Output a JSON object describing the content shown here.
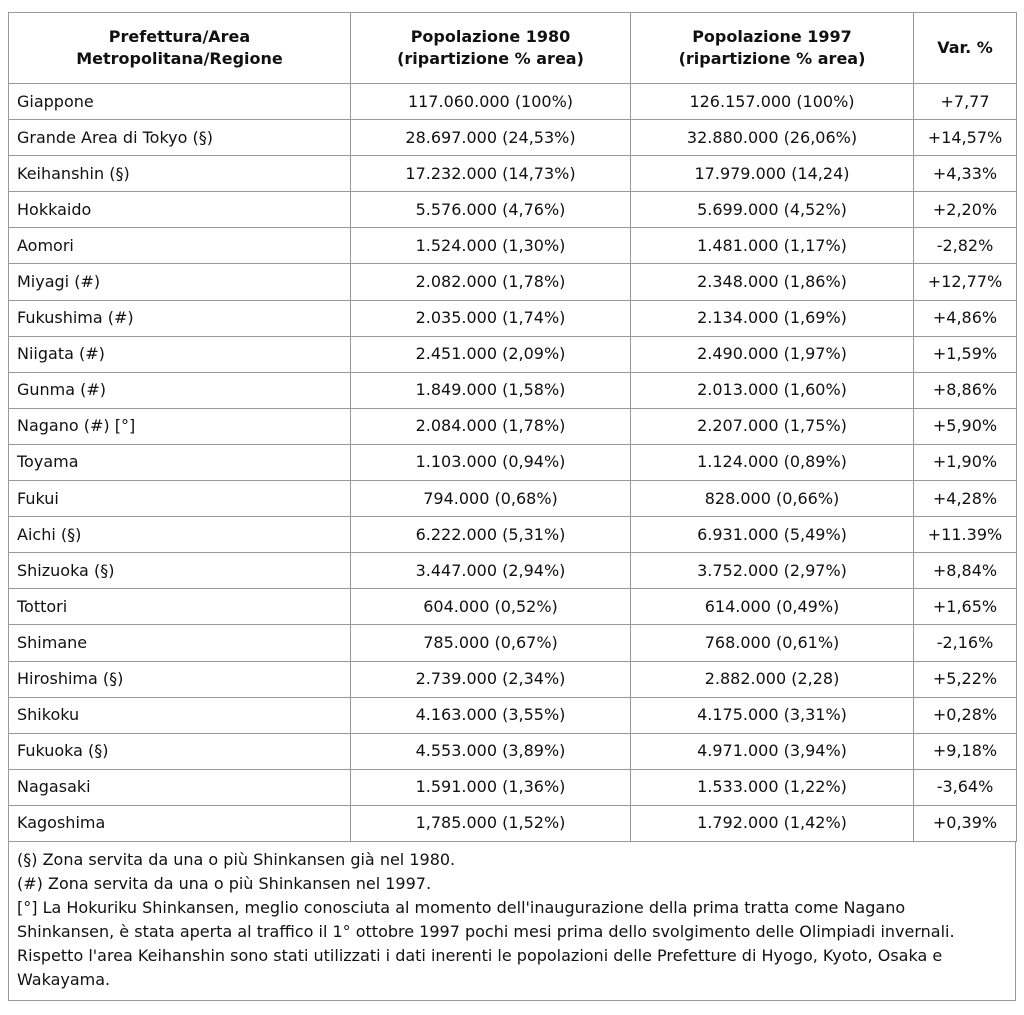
{
  "table": {
    "headers": {
      "area": "Prefettura/Area Metropolitana/Regione",
      "pop1980": "Popolazione 1980 (ripartizione % area)",
      "pop1997": "Popolazione 1997 (ripartizione % area)",
      "var": "Var. %"
    },
    "rows": [
      {
        "area": "Giappone",
        "pop1980": "117.060.000 (100%)",
        "pop1997": "126.157.000 (100%)",
        "var": "+7,77"
      },
      {
        "area": "Grande Area di Tokyo (§)",
        "pop1980": "28.697.000 (24,53%)",
        "pop1997": "32.880.000 (26,06%)",
        "var": "+14,57%"
      },
      {
        "area": "Keihanshin (§)",
        "pop1980": "17.232.000 (14,73%)",
        "pop1997": "17.979.000 (14,24)",
        "var": "+4,33%"
      },
      {
        "area": "Hokkaido",
        "pop1980": "5.576.000 (4,76%)",
        "pop1997": "5.699.000 (4,52%)",
        "var": "+2,20%"
      },
      {
        "area": "Aomori",
        "pop1980": "1.524.000 (1,30%)",
        "pop1997": "1.481.000 (1,17%)",
        "var": "-2,82%"
      },
      {
        "area": "Miyagi (#)",
        "pop1980": "2.082.000 (1,78%)",
        "pop1997": "2.348.000 (1,86%)",
        "var": "+12,77%"
      },
      {
        "area": "Fukushima (#)",
        "pop1980": "2.035.000 (1,74%)",
        "pop1997": "2.134.000 (1,69%)",
        "var": "+4,86%"
      },
      {
        "area": "Niigata (#)",
        "pop1980": "2.451.000 (2,09%)",
        "pop1997": "2.490.000 (1,97%)",
        "var": "+1,59%"
      },
      {
        "area": "Gunma (#)",
        "pop1980": "1.849.000 (1,58%)",
        "pop1997": "2.013.000 (1,60%)",
        "var": "+8,86%"
      },
      {
        "area": "Nagano (#) [°]",
        "pop1980": "2.084.000 (1,78%)",
        "pop1997": "2.207.000 (1,75%)",
        "var": "+5,90%"
      },
      {
        "area": "Toyama",
        "pop1980": "1.103.000 (0,94%)",
        "pop1997": "1.124.000 (0,89%)",
        "var": "+1,90%"
      },
      {
        "area": "Fukui",
        "pop1980": "794.000 (0,68%)",
        "pop1997": "828.000 (0,66%)",
        "var": "+4,28%"
      },
      {
        "area": "Aichi (§)",
        "pop1980": "6.222.000 (5,31%)",
        "pop1997": "6.931.000 (5,49%)",
        "var": "+11.39%"
      },
      {
        "area": "Shizuoka (§)",
        "pop1980": "3.447.000 (2,94%)",
        "pop1997": "3.752.000 (2,97%)",
        "var": "+8,84%"
      },
      {
        "area": "Tottori",
        "pop1980": "604.000 (0,52%)",
        "pop1997": "614.000 (0,49%)",
        "var": "+1,65%"
      },
      {
        "area": "Shimane",
        "pop1980": "785.000 (0,67%)",
        "pop1997": "768.000 (0,61%)",
        "var": "-2,16%"
      },
      {
        "area": "Hiroshima (§)",
        "pop1980": "2.739.000 (2,34%)",
        "pop1997": "2.882.000 (2,28)",
        "var": "+5,22%"
      },
      {
        "area": "Shikoku",
        "pop1980": "4.163.000 (3,55%)",
        "pop1997": "4.175.000 (3,31%)",
        "var": "+0,28%"
      },
      {
        "area": "Fukuoka (§)",
        "pop1980": "4.553.000 (3,89%)",
        "pop1997": "4.971.000 (3,94%)",
        "var": "+9,18%"
      },
      {
        "area": "Nagasaki",
        "pop1980": "1.591.000 (1,36%)",
        "pop1997": "1.533.000 (1,22%)",
        "var": "-3,64%"
      },
      {
        "area": "Kagoshima",
        "pop1980": "1,785.000 (1,52%)",
        "pop1997": "1.792.000 (1,42%)",
        "var": "+0,39%"
      }
    ]
  },
  "notes": [
    "(§) Zona servita da una o più Shinkansen già nel 1980.",
    "(#) Zona servita da una o più Shinkansen nel 1997.",
    "[°] La Hokuriku Shinkansen, meglio conosciuta al momento dell'inaugurazione della prima tratta come Nagano Shinkansen, è stata aperta al traffico il 1° ottobre 1997 pochi mesi prima dello svolgimento delle Olimpiadi invernali.",
    "Rispetto l'area Keihanshin sono stati utilizzati i dati inerenti le popolazioni delle Prefetture di Hyogo, Kyoto, Osaka e Wakayama."
  ]
}
